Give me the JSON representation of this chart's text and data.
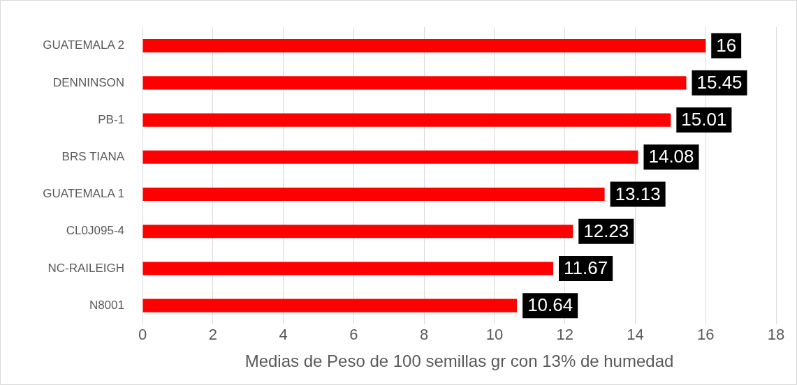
{
  "chart_data": {
    "type": "bar",
    "orientation": "horizontal",
    "xlabel": "Medias de Peso de 100 semillas gr con 13% de humedad",
    "categories": [
      "GUATEMALA 2",
      "DENNINSON",
      "PB-1",
      "BRS TIANA",
      "GUATEMALA 1",
      "CL0J095-4",
      "NC-RAILEIGH",
      "N8001"
    ],
    "values": [
      16,
      15.45,
      15.01,
      14.08,
      13.13,
      12.23,
      11.67,
      10.64
    ],
    "color": "#ff0000",
    "xlim": [
      0,
      18
    ],
    "xticks": [
      0,
      2,
      4,
      6,
      8,
      10,
      12,
      14,
      16,
      18
    ],
    "grid": "x",
    "legend": false,
    "data_labels": true
  }
}
